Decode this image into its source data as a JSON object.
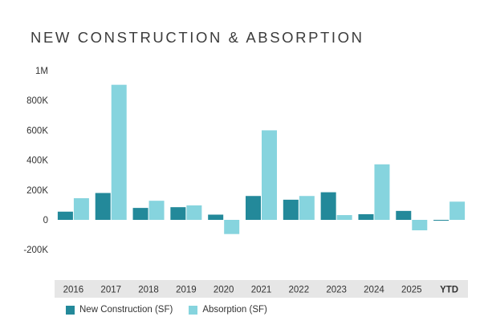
{
  "title": "NEW CONSTRUCTION & ABSORPTION",
  "colors": {
    "new_construction": "#23899a",
    "absorption": "#86d4de",
    "axis_band": "#e6e6e6",
    "text": "#333333"
  },
  "legend": {
    "new_construction": "New Construction (SF)",
    "absorption": "Absorption (SF)"
  },
  "chart_data": {
    "type": "bar",
    "categories": [
      "2016",
      "2017",
      "2018",
      "2019",
      "2020",
      "2021",
      "2022",
      "2023",
      "2024",
      "2025",
      "YTD"
    ],
    "series": [
      {
        "name": "New Construction (SF)",
        "values": [
          55000,
          180000,
          80000,
          85000,
          35000,
          160000,
          135000,
          185000,
          38000,
          60000,
          -5000
        ]
      },
      {
        "name": "Absorption (SF)",
        "values": [
          145000,
          905000,
          128000,
          97000,
          -95000,
          600000,
          160000,
          32000,
          372000,
          -70000,
          122000
        ]
      }
    ],
    "yticks": [
      1000000,
      800000,
      600000,
      400000,
      200000,
      0,
      -200000
    ],
    "ytick_labels": [
      "1M",
      "800K",
      "600K",
      "400K",
      "200K",
      "0",
      "-200K"
    ],
    "ylim": [
      -300000,
      1000000
    ],
    "legend_position": "bottom-left",
    "grid": false
  }
}
